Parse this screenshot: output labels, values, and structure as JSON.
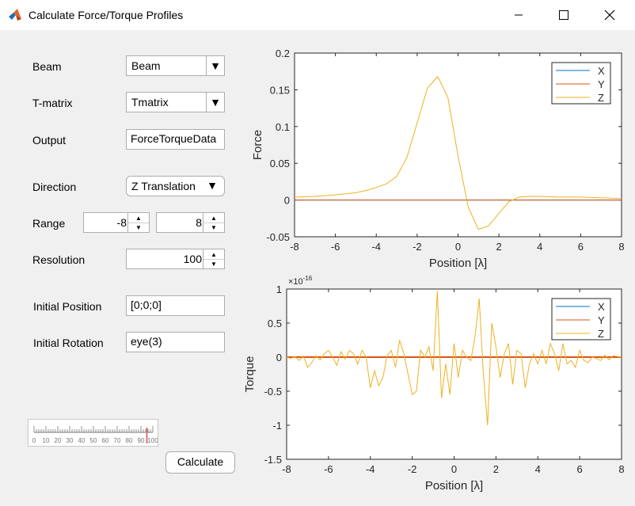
{
  "window": {
    "title": "Calculate Force/Torque Profiles"
  },
  "form": {
    "beam_label": "Beam",
    "beam_value": "Beam",
    "tmatrix_label": "T-matrix",
    "tmatrix_value": "Tmatrix",
    "output_label": "Output",
    "output_value": "ForceTorqueData",
    "direction_label": "Direction",
    "direction_value": "Z Translation",
    "range_label": "Range",
    "range_min": "-8",
    "range_max": "8",
    "resolution_label": "Resolution",
    "resolution_value": "100",
    "initpos_label": "Initial Position",
    "initpos_value": "[0;0;0]",
    "initrot_label": "Initial Rotation",
    "initrot_value": "eye(3)",
    "calculate_label": "Calculate",
    "gauge_ticks": [
      "0",
      "10",
      "20",
      "30",
      "40",
      "50",
      "60",
      "70",
      "80",
      "90",
      "100"
    ],
    "gauge_value": 95
  },
  "colors": {
    "x": "#0072BD",
    "y": "#D95319",
    "z": "#EDB120"
  },
  "chart_data": [
    {
      "type": "line",
      "ylabel": "Force",
      "xlabel": "Position  [λ]",
      "xlim": [
        -8,
        8
      ],
      "ylim": [
        -0.05,
        0.2
      ],
      "xticks": [
        "-8",
        "-6",
        "-4",
        "-2",
        "0",
        "2",
        "4",
        "6",
        "8"
      ],
      "yticks": [
        "-0.05",
        "0",
        "0.05",
        "0.1",
        "0.15",
        "0.2"
      ],
      "legend": "top-right",
      "series": [
        {
          "name": "X",
          "x": [
            -8,
            8
          ],
          "y": [
            0,
            0
          ]
        },
        {
          "name": "Y",
          "x": [
            -8,
            8
          ],
          "y": [
            0,
            0
          ]
        },
        {
          "name": "Z",
          "x": [
            -8,
            -7,
            -6,
            -5,
            -4.5,
            -4,
            -3.5,
            -3,
            -2.5,
            -2,
            -1.5,
            -1,
            -0.5,
            0,
            0.5,
            1,
            1.5,
            2,
            2.5,
            3,
            3.5,
            4,
            5,
            6,
            7,
            8
          ],
          "y": [
            0.004,
            0.005,
            0.007,
            0.01,
            0.013,
            0.017,
            0.022,
            0.032,
            0.058,
            0.105,
            0.152,
            0.168,
            0.14,
            0.06,
            -0.01,
            -0.04,
            -0.035,
            -0.018,
            -0.002,
            0.004,
            0.005,
            0.005,
            0.004,
            0.004,
            0.003,
            0.002
          ]
        }
      ]
    },
    {
      "type": "line",
      "ylabel": "Torque",
      "xlabel": "Position  [λ]",
      "exponent": "×10",
      "exponent_power": "-16",
      "xlim": [
        -8,
        8
      ],
      "ylim": [
        -1.5,
        1
      ],
      "xticks": [
        "-8",
        "-6",
        "-4",
        "-2",
        "0",
        "2",
        "4",
        "6",
        "8"
      ],
      "yticks": [
        "-1.5",
        "-1",
        "-0.5",
        "0",
        "0.5",
        "1"
      ],
      "legend": "top-right",
      "series": [
        {
          "name": "X",
          "x": [
            -8,
            8
          ],
          "y": [
            0,
            0
          ]
        },
        {
          "name": "Y",
          "x": [
            -8,
            8
          ],
          "y": [
            0,
            0
          ]
        },
        {
          "name": "Z",
          "x": [
            -8,
            -7.8,
            -7.6,
            -7.4,
            -7.2,
            -7,
            -6.8,
            -6.6,
            -6.4,
            -6.2,
            -6,
            -5.8,
            -5.6,
            -5.4,
            -5.2,
            -5,
            -4.8,
            -4.6,
            -4.4,
            -4.2,
            -4,
            -3.8,
            -3.6,
            -3.4,
            -3.2,
            -3,
            -2.8,
            -2.6,
            -2.4,
            -2.2,
            -2,
            -1.8,
            -1.6,
            -1.4,
            -1.2,
            -1,
            -0.8,
            -0.6,
            -0.4,
            -0.2,
            0,
            0.2,
            0.4,
            0.6,
            0.8,
            1,
            1.2,
            1.4,
            1.6,
            1.8,
            2,
            2.2,
            2.4,
            2.6,
            2.8,
            3,
            3.2,
            3.4,
            3.6,
            3.8,
            4,
            4.2,
            4.4,
            4.6,
            4.8,
            5,
            5.2,
            5.4,
            5.6,
            5.8,
            6,
            6.2,
            6.4,
            6.6,
            6.8,
            7,
            7.2,
            7.4,
            7.6,
            7.8,
            8
          ],
          "y": [
            0,
            -0.02,
            0.01,
            -0.05,
            0.02,
            -0.15,
            -0.08,
            0.02,
            -0.04,
            0.05,
            0.1,
            0.0,
            -0.12,
            0.08,
            -0.03,
            0.1,
            0.05,
            -0.1,
            0.1,
            0.0,
            -0.45,
            -0.2,
            -0.42,
            -0.3,
            0.02,
            0.1,
            -0.15,
            0.25,
            0.05,
            -0.25,
            -0.55,
            -0.5,
            0.1,
            0.0,
            0.15,
            -0.2,
            0.97,
            -0.6,
            -0.1,
            -0.55,
            0.2,
            -0.3,
            0.1,
            0.0,
            -0.05,
            0.3,
            0.86,
            -0.25,
            -1.0,
            0.5,
            0.15,
            -0.3,
            0.05,
            0.2,
            -0.4,
            0.1,
            0.05,
            -0.45,
            -0.1,
            0.05,
            -0.1,
            0.1,
            -0.1,
            0.2,
            0.05,
            -0.2,
            0.2,
            -0.1,
            -0.05,
            -0.15,
            0.1,
            -0.05,
            -0.08,
            0.0,
            -0.02,
            -0.05,
            0.03,
            -0.04,
            0.02,
            0.01,
            0.0
          ]
        }
      ]
    }
  ]
}
